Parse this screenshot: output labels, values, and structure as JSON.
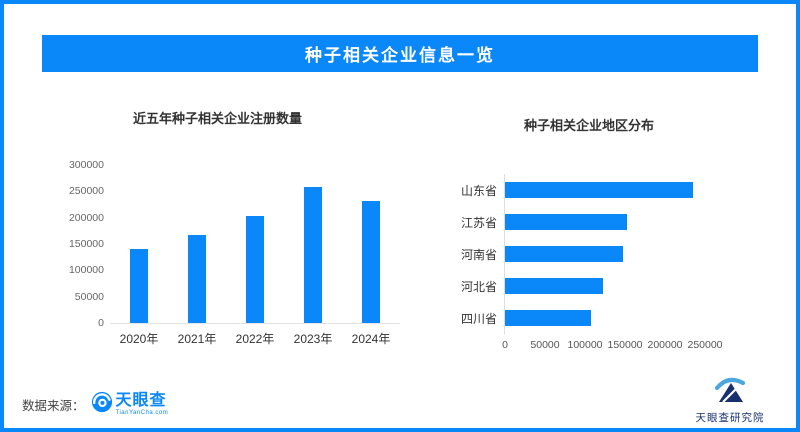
{
  "header": {
    "title": "种子相关企业信息一览"
  },
  "chart_data": [
    {
      "type": "bar",
      "title": "近五年种子相关企业注册数量",
      "categories": [
        "2020年",
        "2021年",
        "2022年",
        "2023年",
        "2024年"
      ],
      "values": [
        140000,
        168000,
        203000,
        258000,
        232000
      ],
      "xlabel": "",
      "ylabel": "",
      "ylim": [
        0,
        300000
      ],
      "yticks": [
        0,
        50000,
        100000,
        150000,
        200000,
        250000,
        300000
      ],
      "grid": false,
      "legend": "none",
      "bar_color": "#0a87f8"
    },
    {
      "type": "bar-horizontal",
      "title": "种子相关企业地区分布",
      "categories": [
        "山东省",
        "江苏省",
        "河南省",
        "河北省",
        "四川省"
      ],
      "values": [
        235000,
        153000,
        148000,
        122000,
        107000
      ],
      "xlabel": "",
      "ylabel": "",
      "xlim": [
        0,
        250000
      ],
      "xticks": [
        0,
        50000,
        100000,
        150000,
        200000,
        250000
      ],
      "grid": false,
      "legend": "none",
      "bar_color": "#0a87f8"
    }
  ],
  "footer": {
    "source_label": "数据来源：",
    "source_logo_name": "天眼查",
    "source_logo_sub": "TianYanCha.com",
    "institute_name": "天眼查研究院"
  },
  "colors": {
    "brand_blue": "#0a87f8",
    "navy": "#17316e",
    "light_blue": "#4aa7e0"
  }
}
